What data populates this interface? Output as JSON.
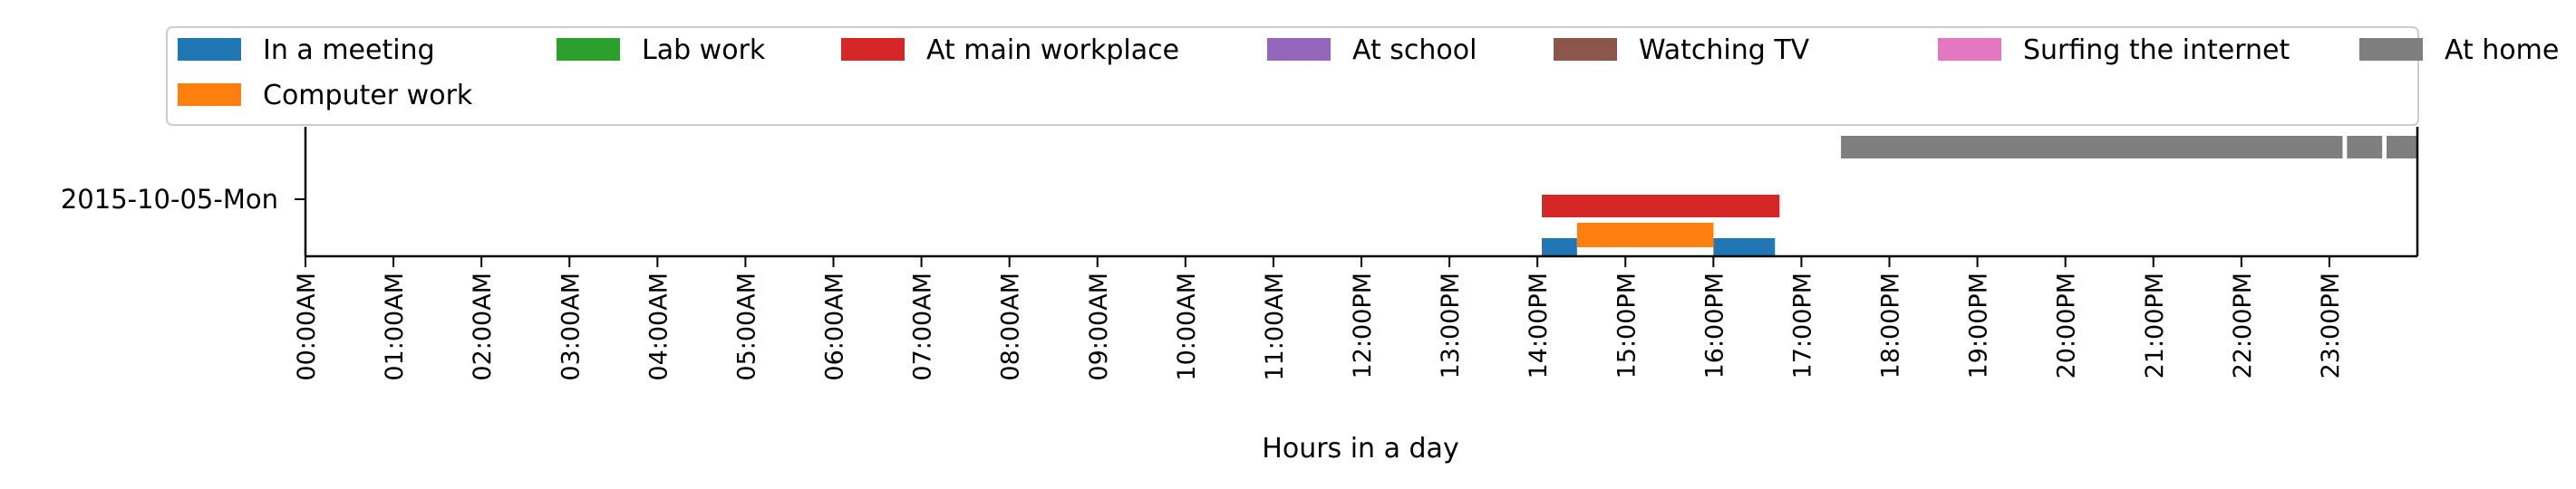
{
  "chart_data": {
    "type": "timeline",
    "title": "",
    "xlabel": "Hours in a day",
    "ylabel": "",
    "xlim": [
      0,
      24
    ],
    "grid": false,
    "legend_position": "top",
    "rows": [
      "2015-10-05-Mon"
    ],
    "x_ticks": [
      {
        "value": 0,
        "label": "00:00AM"
      },
      {
        "value": 1,
        "label": "01:00AM"
      },
      {
        "value": 2,
        "label": "02:00AM"
      },
      {
        "value": 3,
        "label": "03:00AM"
      },
      {
        "value": 4,
        "label": "04:00AM"
      },
      {
        "value": 5,
        "label": "05:00AM"
      },
      {
        "value": 6,
        "label": "06:00AM"
      },
      {
        "value": 7,
        "label": "07:00AM"
      },
      {
        "value": 8,
        "label": "08:00AM"
      },
      {
        "value": 9,
        "label": "09:00AM"
      },
      {
        "value": 10,
        "label": "10:00AM"
      },
      {
        "value": 11,
        "label": "11:00AM"
      },
      {
        "value": 12,
        "label": "12:00PM"
      },
      {
        "value": 13,
        "label": "13:00PM"
      },
      {
        "value": 14,
        "label": "14:00PM"
      },
      {
        "value": 15,
        "label": "15:00PM"
      },
      {
        "value": 16,
        "label": "16:00PM"
      },
      {
        "value": 17,
        "label": "17:00PM"
      },
      {
        "value": 18,
        "label": "18:00PM"
      },
      {
        "value": 19,
        "label": "19:00PM"
      },
      {
        "value": 20,
        "label": "20:00PM"
      },
      {
        "value": 21,
        "label": "21:00PM"
      },
      {
        "value": 22,
        "label": "22:00PM"
      },
      {
        "value": 23,
        "label": "23:00PM"
      }
    ],
    "series": [
      {
        "name": "In a meeting",
        "color": "#1f77b4",
        "segments": [
          [
            14.05,
            14.45
          ],
          [
            16.0,
            16.7
          ]
        ]
      },
      {
        "name": "Computer work",
        "color": "#ff7f0e",
        "segments": [
          [
            14.45,
            16.0
          ]
        ]
      },
      {
        "name": "Lab work",
        "color": "#2ca02c",
        "segments": []
      },
      {
        "name": "At main workplace",
        "color": "#d62728",
        "segments": [
          [
            14.05,
            16.75
          ]
        ]
      },
      {
        "name": "At school",
        "color": "#9467bd",
        "segments": []
      },
      {
        "name": "Watching TV",
        "color": "#8c564b",
        "segments": []
      },
      {
        "name": "Surfing the internet",
        "color": "#e377c2",
        "segments": []
      },
      {
        "name": "At home",
        "color": "#7f7f7f",
        "segments": [
          [
            17.45,
            23.15
          ],
          [
            23.2,
            23.6
          ],
          [
            23.65,
            24.0
          ]
        ]
      }
    ],
    "legend_order": [
      "In a meeting",
      "Lab work",
      "At main workplace",
      "At school",
      "Watching TV",
      "Surfing the internet",
      "At home",
      "Computer work"
    ]
  }
}
